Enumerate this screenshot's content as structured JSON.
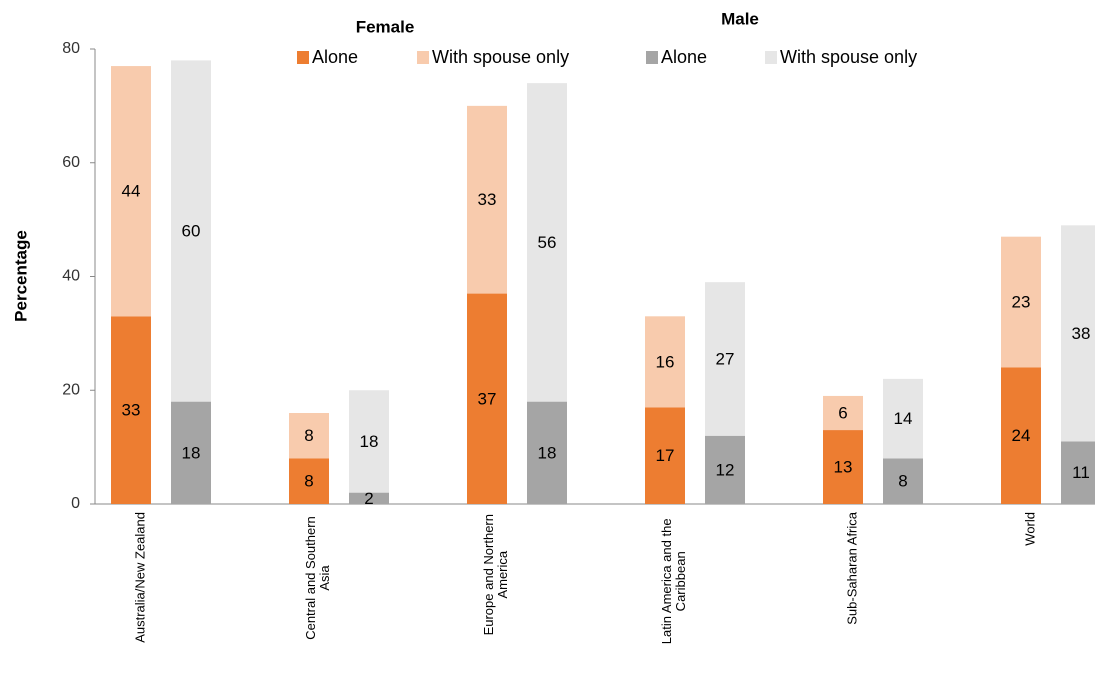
{
  "chart_data": {
    "type": "grouped_stacked_bar",
    "ylabel": "Percentage",
    "categories": [
      "Australia/New Zealand",
      "Central and Southern Asia",
      "Europe and Northern America",
      "Latin America and the Caribbean",
      "Sub-Saharan Africa",
      "World"
    ],
    "series": [
      {
        "name": "Alone",
        "stack": "Female",
        "color": "#ed7d31",
        "values": [
          33,
          8,
          37,
          17,
          13,
          24
        ]
      },
      {
        "name": "With spouse only",
        "stack": "Female",
        "color": "#f8cbad",
        "values": [
          44,
          8,
          33,
          16,
          6,
          23
        ]
      },
      {
        "name": "Alone",
        "stack": "Male",
        "color": "#a5a5a5",
        "values": [
          18,
          2,
          18,
          12,
          8,
          11
        ]
      },
      {
        "name": "With spouse only",
        "stack": "Male",
        "color": "#e6e6e6",
        "values": [
          60,
          18,
          56,
          27,
          14,
          38
        ]
      }
    ],
    "ylim": [
      0,
      80
    ],
    "yticks": [
      0,
      20,
      40,
      60,
      80
    ]
  }
}
